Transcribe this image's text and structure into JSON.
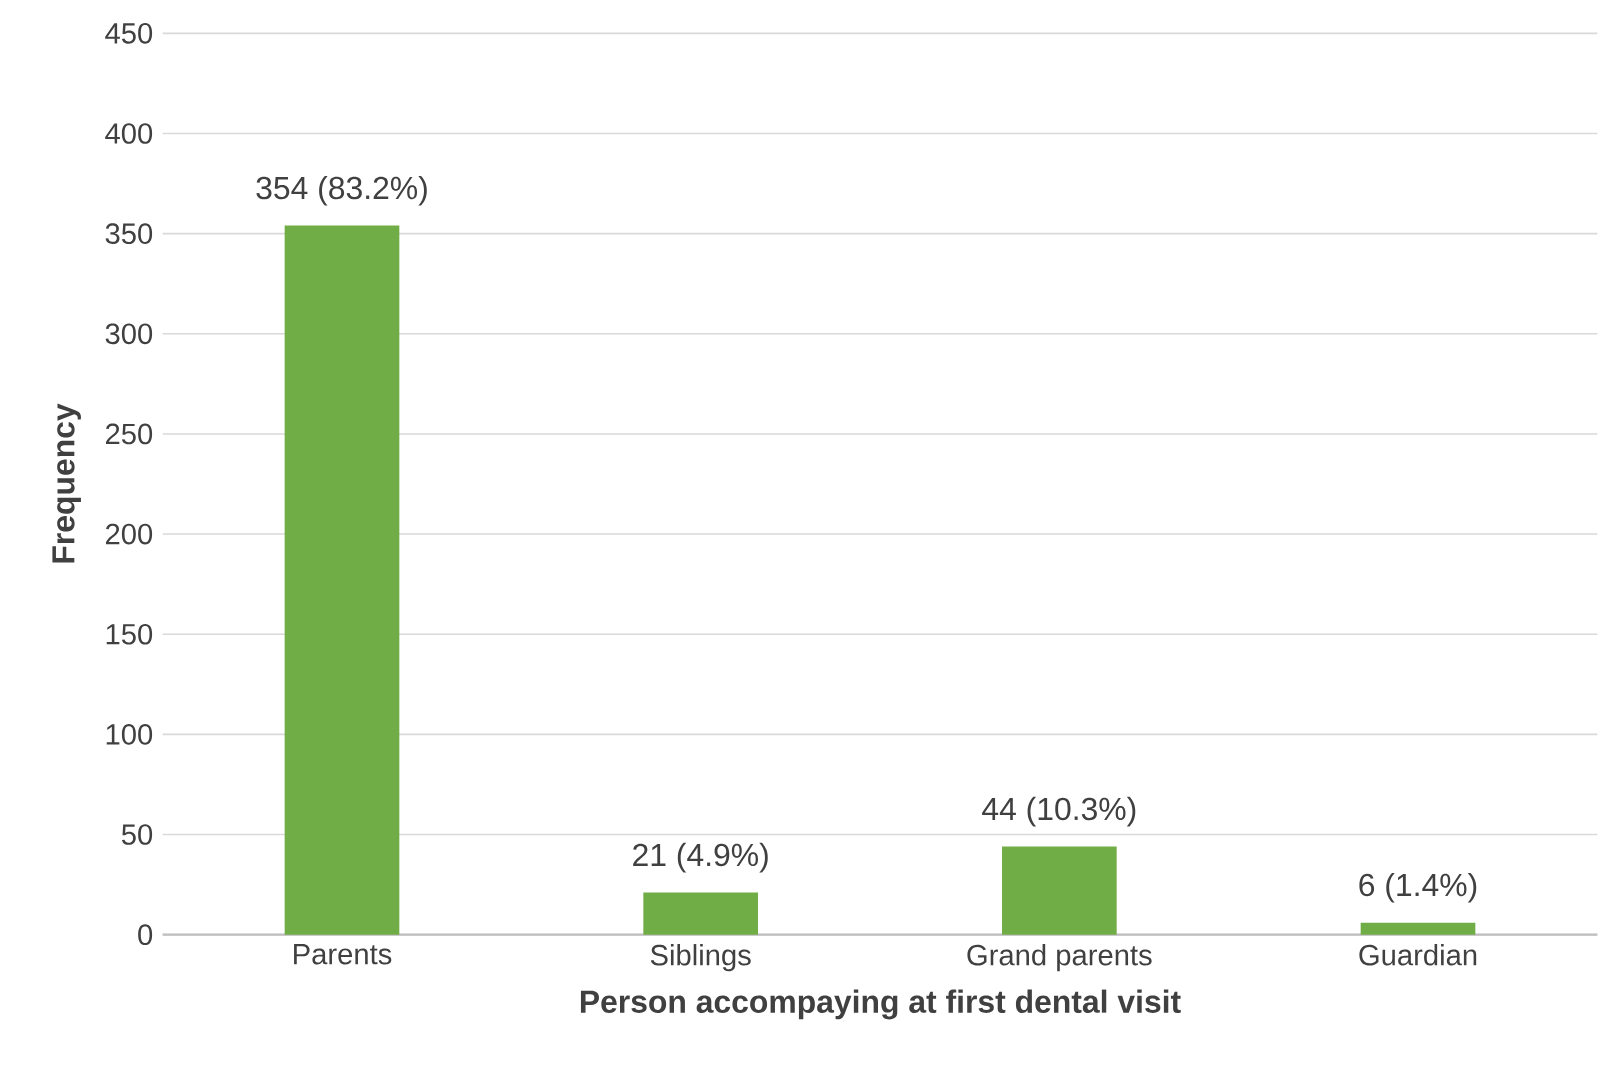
{
  "chart_data": {
    "type": "bar",
    "xlabel": "Person accompaying at first dental visit",
    "ylabel": "Frequency",
    "categories": [
      "Parents",
      "Siblings",
      "Grand parents",
      "Guardian"
    ],
    "values": [
      354,
      21,
      44,
      6
    ],
    "value_labels": [
      "354 (83.2%)",
      "21 (4.9%)",
      "44 (10.3%)",
      "6 (1.4%)"
    ],
    "color": "#70ad47",
    "ylim": [
      0,
      450
    ],
    "yticks": [
      0,
      50,
      100,
      150,
      200,
      250,
      300,
      350,
      400,
      450
    ],
    "grid": "y"
  }
}
